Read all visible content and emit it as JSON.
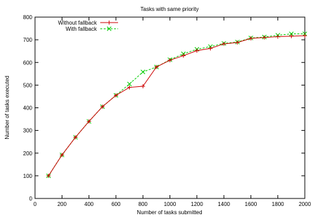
{
  "chart_data": {
    "type": "line",
    "title": "Tasks with same priority",
    "xlabel": "Number of tasks submitted",
    "ylabel": "Number of tasks executed",
    "xlim": [
      0,
      2000
    ],
    "ylim": [
      0,
      800
    ],
    "xticks": [
      0,
      200,
      400,
      600,
      800,
      1000,
      1200,
      1400,
      1600,
      1800,
      2000
    ],
    "yticks": [
      0,
      100,
      200,
      300,
      400,
      500,
      600,
      700,
      800
    ],
    "grid": false,
    "legend_position": "top-left",
    "series": [
      {
        "name": "Without fallback",
        "color": "#cc0000",
        "line_style": "solid",
        "marker": "plus",
        "x": [
          100,
          200,
          300,
          400,
          500,
          600,
          700,
          800,
          900,
          1000,
          1100,
          1200,
          1300,
          1400,
          1500,
          1600,
          1700,
          1800,
          1900,
          2000
        ],
        "y": [
          100,
          192,
          270,
          340,
          405,
          455,
          490,
          495,
          580,
          610,
          630,
          652,
          662,
          682,
          688,
          706,
          710,
          714,
          716,
          718
        ]
      },
      {
        "name": "With fallback",
        "color": "#00cc00",
        "line_style": "dashed",
        "marker": "x",
        "x": [
          100,
          200,
          300,
          400,
          500,
          600,
          700,
          800,
          900,
          1000,
          1100,
          1200,
          1300,
          1400,
          1500,
          1600,
          1700,
          1800,
          1900,
          2000
        ],
        "y": [
          100,
          192,
          270,
          340,
          405,
          455,
          505,
          558,
          580,
          612,
          638,
          658,
          670,
          684,
          690,
          708,
          712,
          720,
          726,
          726
        ]
      }
    ]
  }
}
